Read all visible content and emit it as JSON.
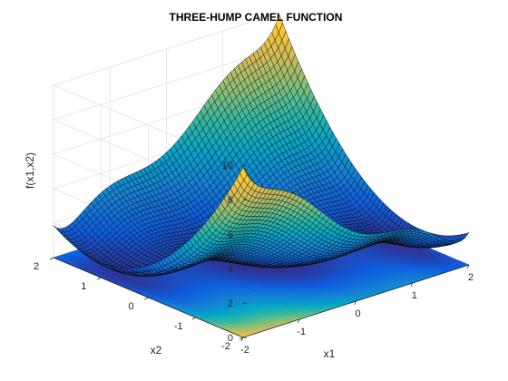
{
  "chart_data": {
    "type": "surface",
    "title": "THREE-HUMP CAMEL FUNCTION",
    "xlabel": "x1",
    "ylabel": "x2",
    "zlabel": "f(x1,x2)",
    "function": "f(x1,x2) = 2*x1^2 - 1.05*x1^4 + x1^6/6 + x1*x2 + x2^2",
    "xlim": [
      -2,
      2
    ],
    "ylim": [
      -2,
      2
    ],
    "zlim": [
      0,
      10
    ],
    "x_ticks": [
      "-2",
      "-1",
      "0",
      "1",
      "2"
    ],
    "y_ticks": [
      "-2",
      "-1",
      "0",
      "1",
      "2"
    ],
    "z_ticks": [
      "0",
      "2",
      "4",
      "6",
      "8",
      "10"
    ],
    "grid": true,
    "colormap": "parula",
    "contour_projection": "floor at z=0",
    "grid_points": 61,
    "colormap_stops": [
      "#352a87",
      "#0f5cdd",
      "#1481d6",
      "#06a4ca",
      "#2eb7a4",
      "#87bf77",
      "#d1bb59",
      "#fec832",
      "#f9fb0e"
    ]
  }
}
